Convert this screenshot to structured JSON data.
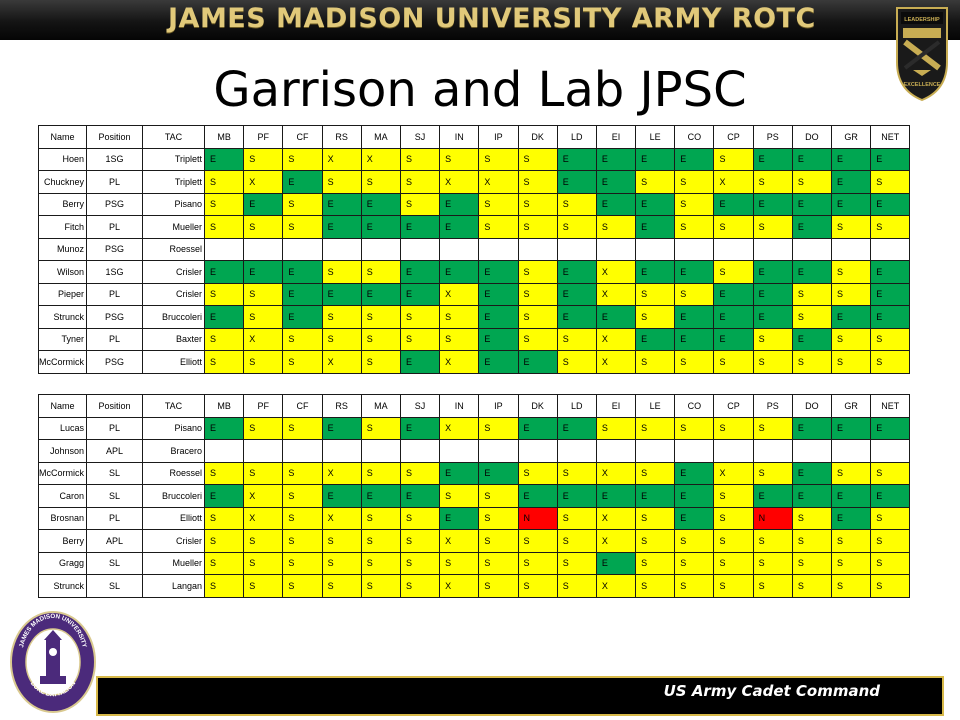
{
  "header": {
    "banner": "JAMES MADISON UNIVERSITY ARMY ROTC",
    "crest_text": [
      "LEADERSHIP",
      "EXCELLENCE"
    ],
    "title": "Garrison and Lab JPSC"
  },
  "columns": [
    "Name",
    "Position",
    "TAC",
    "MB",
    "PF",
    "CF",
    "RS",
    "MA",
    "SJ",
    "IN",
    "IP",
    "DK",
    "LD",
    "EI",
    "LE",
    "CO",
    "CP",
    "PS",
    "DO",
    "GR",
    "NET"
  ],
  "tables": [
    {
      "rows": [
        {
          "name": "Hoen",
          "position": "1SG",
          "tac": "Triplett",
          "grades": "ESSXXSSSSEEEESEEEE"
        },
        {
          "name": "Chuckney",
          "position": "PL",
          "tac": "Triplett",
          "grades": "SXESSSXXSEESSXSSES"
        },
        {
          "name": "Berry",
          "position": "PSG",
          "tac": "Pisano",
          "grades": "SESEESESSSEESEEEEE"
        },
        {
          "name": "Fitch",
          "position": "PL",
          "tac": "Mueller",
          "grades": "SSSEEEESSSSESSSESS"
        },
        {
          "name": "Munoz",
          "position": "PSG",
          "tac": "Roessel",
          "grades": ""
        },
        {
          "name": "Wilson",
          "position": "1SG",
          "tac": "Crisler",
          "grades": "EEESSEEESEXEESEESE"
        },
        {
          "name": "Pieper",
          "position": "PL",
          "tac": "Crisler",
          "grades": "SSEEEEXESEXSSEESSE"
        },
        {
          "name": "Strunck",
          "position": "PSG",
          "tac": "Bruccoleri",
          "grades": "ESESSSSESEESEEESEE"
        },
        {
          "name": "Tyner",
          "position": "PL",
          "tac": "Baxter",
          "grades": "SXSSSSSESSXEEESESS"
        },
        {
          "name": "McCormick",
          "position": "PSG",
          "tac": "Elliott",
          "grades": "SSSXSEXEESXSSSSSSS"
        }
      ]
    },
    {
      "rows": [
        {
          "name": "Lucas",
          "position": "PL",
          "tac": "Pisano",
          "grades": "ESSESEXSEESSSSSEEE"
        },
        {
          "name": "Johnson",
          "position": "APL",
          "tac": "Bracero",
          "grades": ""
        },
        {
          "name": "McCormick",
          "position": "SL",
          "tac": "Roessel",
          "grades": "SSSXSSEESSXSEXSESS"
        },
        {
          "name": "Caron",
          "position": "SL",
          "tac": "Bruccoleri",
          "grades": "EXSEEESSEEEEESEEEE"
        },
        {
          "name": "Brosnan",
          "position": "PL",
          "tac": "Elliott",
          "grades": "SXSXSSESNSXSESNSES"
        },
        {
          "name": "Berry",
          "position": "APL",
          "tac": "Crisler",
          "grades": "SSSSSSXSSSXSSSSSSS"
        },
        {
          "name": "Gragg",
          "position": "SL",
          "tac": "Mueller",
          "grades": "SSSSSSSSSSESSSSSSS"
        },
        {
          "name": "Strunck",
          "position": "SL",
          "tac": "Langan",
          "grades": "SSSSSSXSSSXSSSSSSS"
        }
      ]
    }
  ],
  "seal": {
    "top_text": "JAMES MADISON UNIVERSITY",
    "bottom_text": "DUKE BATTALION"
  },
  "footer": {
    "text": "US Army Cadet Command"
  },
  "colors": {
    "S": "#ffff00",
    "E": "#00a651",
    "X": "#ffff00",
    "N": "#ff0000",
    "banner_text": "#e1c97a",
    "footer_border": "#d7b94a",
    "seal_purple": "#4b2a7b"
  }
}
